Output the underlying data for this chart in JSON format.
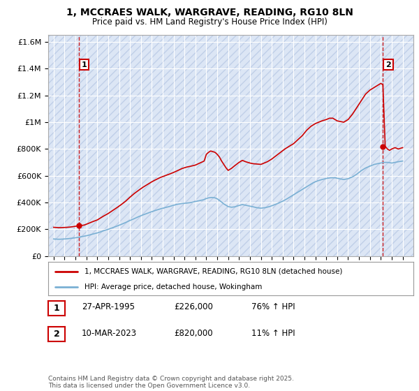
{
  "title": "1, MCCRAES WALK, WARGRAVE, READING, RG10 8LN",
  "subtitle": "Price paid vs. HM Land Registry's House Price Index (HPI)",
  "ylim": [
    0,
    1650000
  ],
  "yticks": [
    0,
    200000,
    400000,
    600000,
    800000,
    1000000,
    1200000,
    1400000,
    1600000
  ],
  "ytick_labels": [
    "£0",
    "£200K",
    "£400K",
    "£600K",
    "£800K",
    "£1M",
    "£1.2M",
    "£1.4M",
    "£1.6M"
  ],
  "background_color": "#ffffff",
  "plot_bg_color": "#dce6f5",
  "hatch_color": "#c0cfe8",
  "grid_color": "#ffffff",
  "red_line_color": "#cc0000",
  "blue_line_color": "#7ab0d4",
  "annotation_box_color": "#cc0000",
  "point1_x": 1995.32,
  "point1_y": 226000,
  "point1_label": "1",
  "point2_x": 2023.19,
  "point2_y": 820000,
  "point2_label": "2",
  "legend_label_red": "1, MCCRAES WALK, WARGRAVE, READING, RG10 8LN (detached house)",
  "legend_label_blue": "HPI: Average price, detached house, Wokingham",
  "table_row1": [
    "1",
    "27-APR-1995",
    "£226,000",
    "76% ↑ HPI"
  ],
  "table_row2": [
    "2",
    "10-MAR-2023",
    "£820,000",
    "11% ↑ HPI"
  ],
  "footer": "Contains HM Land Registry data © Crown copyright and database right 2025.\nThis data is licensed under the Open Government Licence v3.0.",
  "red_line_x": [
    1993.0,
    1993.2,
    1993.4,
    1993.6,
    1993.8,
    1994.0,
    1994.2,
    1994.4,
    1994.6,
    1994.8,
    1995.0,
    1995.32,
    1995.5,
    1995.8,
    1996.0,
    1996.3,
    1996.6,
    1997.0,
    1997.3,
    1997.6,
    1998.0,
    1998.4,
    1998.8,
    1999.2,
    1999.6,
    2000.0,
    2000.4,
    2000.8,
    2001.2,
    2001.6,
    2002.0,
    2002.4,
    2002.8,
    2003.2,
    2003.6,
    2004.0,
    2004.4,
    2004.8,
    2005.2,
    2005.6,
    2006.0,
    2006.4,
    2006.8,
    2007.0,
    2007.2,
    2007.4,
    2007.6,
    2007.8,
    2008.0,
    2008.2,
    2008.4,
    2008.6,
    2008.8,
    2009.0,
    2009.3,
    2009.6,
    2010.0,
    2010.3,
    2010.6,
    2011.0,
    2011.3,
    2011.6,
    2012.0,
    2012.3,
    2012.6,
    2013.0,
    2013.4,
    2013.8,
    2014.2,
    2014.6,
    2015.0,
    2015.4,
    2015.8,
    2016.2,
    2016.6,
    2017.0,
    2017.3,
    2017.6,
    2018.0,
    2018.3,
    2018.6,
    2019.0,
    2019.3,
    2019.6,
    2020.0,
    2020.4,
    2020.8,
    2021.2,
    2021.6,
    2022.0,
    2022.4,
    2022.8,
    2023.0,
    2023.19,
    2023.4,
    2023.6,
    2023.8,
    2024.0,
    2024.3,
    2024.6,
    2025.0
  ],
  "red_line_y": [
    215000,
    214000,
    213000,
    212000,
    213000,
    214000,
    215000,
    216000,
    218000,
    220000,
    223000,
    226000,
    228000,
    232000,
    238000,
    248000,
    258000,
    270000,
    285000,
    300000,
    318000,
    340000,
    362000,
    385000,
    410000,
    440000,
    468000,
    492000,
    515000,
    535000,
    555000,
    572000,
    588000,
    600000,
    612000,
    625000,
    640000,
    655000,
    665000,
    672000,
    680000,
    695000,
    710000,
    760000,
    775000,
    785000,
    780000,
    775000,
    760000,
    740000,
    710000,
    685000,
    660000,
    640000,
    655000,
    675000,
    700000,
    715000,
    705000,
    695000,
    690000,
    688000,
    685000,
    695000,
    705000,
    725000,
    750000,
    775000,
    800000,
    820000,
    840000,
    870000,
    900000,
    940000,
    970000,
    990000,
    1000000,
    1010000,
    1020000,
    1030000,
    1030000,
    1010000,
    1005000,
    1000000,
    1020000,
    1060000,
    1110000,
    1160000,
    1210000,
    1240000,
    1260000,
    1280000,
    1290000,
    1280000,
    820000,
    800000,
    790000,
    800000,
    810000,
    800000,
    810000
  ],
  "blue_line_x": [
    1993.0,
    1993.2,
    1993.4,
    1993.6,
    1993.8,
    1994.0,
    1994.3,
    1994.6,
    1995.0,
    1995.3,
    1995.6,
    1996.0,
    1996.3,
    1996.6,
    1997.0,
    1997.3,
    1997.6,
    1998.0,
    1998.4,
    1998.8,
    1999.2,
    1999.6,
    2000.0,
    2000.4,
    2000.8,
    2001.2,
    2001.6,
    2002.0,
    2002.4,
    2002.8,
    2003.2,
    2003.6,
    2004.0,
    2004.4,
    2004.8,
    2005.2,
    2005.6,
    2006.0,
    2006.4,
    2006.8,
    2007.0,
    2007.2,
    2007.5,
    2007.8,
    2008.0,
    2008.3,
    2008.6,
    2009.0,
    2009.3,
    2009.6,
    2010.0,
    2010.3,
    2010.6,
    2011.0,
    2011.3,
    2011.6,
    2012.0,
    2012.4,
    2012.8,
    2013.2,
    2013.6,
    2014.0,
    2014.4,
    2014.8,
    2015.2,
    2015.6,
    2016.0,
    2016.4,
    2016.8,
    2017.2,
    2017.6,
    2018.0,
    2018.4,
    2018.8,
    2019.2,
    2019.6,
    2020.0,
    2020.4,
    2020.8,
    2021.2,
    2021.6,
    2022.0,
    2022.4,
    2022.8,
    2023.0,
    2023.3,
    2023.6,
    2023.8,
    2024.0,
    2024.3,
    2024.6,
    2025.0
  ],
  "blue_line_y": [
    128000,
    127000,
    126000,
    126000,
    127000,
    128000,
    130000,
    133000,
    137000,
    141000,
    146000,
    152000,
    158000,
    165000,
    173000,
    181000,
    190000,
    200000,
    212000,
    224000,
    237000,
    251000,
    266000,
    280000,
    295000,
    308000,
    320000,
    332000,
    343000,
    353000,
    362000,
    370000,
    380000,
    388000,
    393000,
    396000,
    400000,
    408000,
    415000,
    422000,
    430000,
    435000,
    438000,
    435000,
    428000,
    410000,
    390000,
    370000,
    365000,
    368000,
    378000,
    385000,
    380000,
    373000,
    368000,
    362000,
    358000,
    362000,
    370000,
    382000,
    395000,
    410000,
    428000,
    448000,
    468000,
    488000,
    508000,
    528000,
    548000,
    562000,
    572000,
    580000,
    585000,
    585000,
    578000,
    572000,
    578000,
    592000,
    612000,
    638000,
    658000,
    672000,
    685000,
    692000,
    695000,
    700000,
    700000,
    698000,
    695000,
    700000,
    705000,
    710000
  ],
  "xlim": [
    1992.5,
    2026.0
  ],
  "xticks": [
    1993,
    1994,
    1995,
    1996,
    1997,
    1998,
    1999,
    2000,
    2001,
    2002,
    2003,
    2004,
    2005,
    2006,
    2007,
    2008,
    2009,
    2010,
    2011,
    2012,
    2013,
    2014,
    2015,
    2016,
    2017,
    2018,
    2019,
    2020,
    2021,
    2022,
    2023,
    2024,
    2025
  ]
}
